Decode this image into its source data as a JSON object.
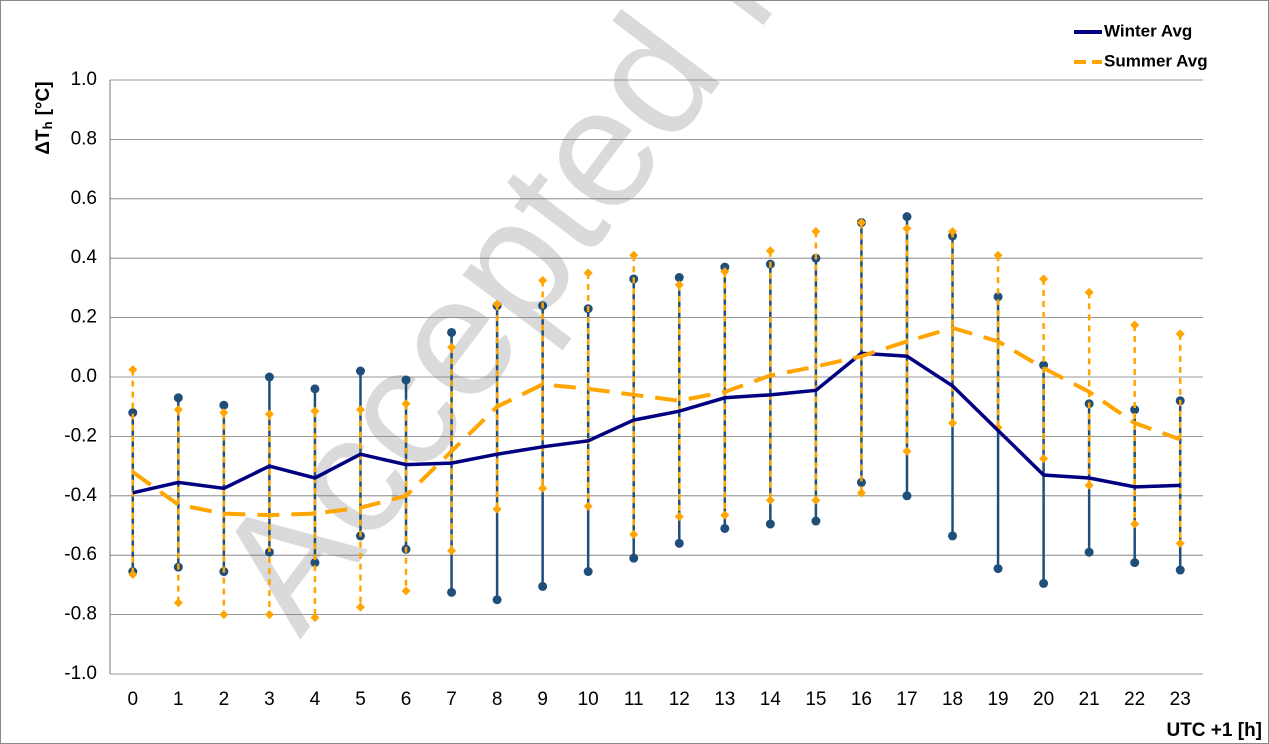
{
  "chart_data": {
    "type": "line",
    "watermark": "Accepted Ma",
    "y_label": [
      "ΔT",
      "h",
      "[°C]"
    ],
    "x_label": "UTC +1 [h]",
    "categories": [
      "0",
      "1",
      "2",
      "3",
      "4",
      "5",
      "6",
      "7",
      "8",
      "9",
      "10",
      "11",
      "12",
      "13",
      "14",
      "15",
      "16",
      "17",
      "18",
      "19",
      "20",
      "21",
      "22",
      "23"
    ],
    "ylim": [
      -1.0,
      1.0
    ],
    "yticks": [
      {
        "value": 1.0,
        "label": "1.0"
      },
      0.8,
      0.6,
      0.4,
      0.2,
      {
        "value": 0.0,
        "label": "0.0"
      },
      -0.2,
      -0.4,
      -0.6,
      -0.8,
      {
        "value": -1.0,
        "label": "-1.0"
      }
    ],
    "grid": true,
    "legend": "top-right",
    "series": [
      {
        "name": "Winter Avg",
        "color": "#000080",
        "bar_color": "#1f4e79",
        "dashed": false,
        "values": [
          -0.39,
          -0.355,
          -0.375,
          -0.3,
          -0.34,
          -0.26,
          -0.295,
          -0.29,
          -0.26,
          -0.235,
          -0.215,
          -0.145,
          -0.115,
          -0.07,
          -0.06,
          -0.045,
          0.08,
          0.07,
          -0.03,
          -0.18,
          -0.33,
          -0.34,
          -0.37,
          -0.365
        ],
        "max": [
          -0.12,
          -0.07,
          -0.095,
          0.0,
          -0.04,
          0.02,
          -0.01,
          0.15,
          0.24,
          0.24,
          0.23,
          0.33,
          0.335,
          0.37,
          0.38,
          0.4,
          0.52,
          0.54,
          0.475,
          0.27,
          0.04,
          -0.09,
          -0.11,
          -0.08
        ],
        "min": [
          -0.655,
          -0.64,
          -0.655,
          -0.59,
          -0.625,
          -0.535,
          -0.58,
          -0.725,
          -0.75,
          -0.705,
          -0.655,
          -0.61,
          -0.56,
          -0.51,
          -0.495,
          -0.485,
          -0.355,
          -0.4,
          -0.535,
          -0.645,
          -0.695,
          -0.59,
          -0.625,
          -0.65
        ]
      },
      {
        "name": "Summer Avg",
        "color": "#ffa500",
        "bar_color": "#ffa500",
        "dashed": true,
        "values": [
          -0.32,
          -0.43,
          -0.46,
          -0.465,
          -0.46,
          -0.44,
          -0.4,
          -0.25,
          -0.1,
          -0.025,
          -0.04,
          -0.06,
          -0.08,
          -0.05,
          0.005,
          0.035,
          0.07,
          0.12,
          0.165,
          0.12,
          0.03,
          -0.05,
          -0.155,
          -0.21
        ],
        "max": [
          0.025,
          -0.11,
          -0.12,
          -0.125,
          -0.115,
          -0.11,
          -0.09,
          0.1,
          0.245,
          0.325,
          0.35,
          0.41,
          0.31,
          0.355,
          0.425,
          0.49,
          0.52,
          0.5,
          0.49,
          0.41,
          0.33,
          0.285,
          0.175,
          0.145
        ],
        "min": [
          -0.665,
          -0.76,
          -0.8,
          -0.8,
          -0.81,
          -0.775,
          -0.72,
          -0.585,
          -0.445,
          -0.375,
          -0.435,
          -0.53,
          -0.47,
          -0.465,
          -0.415,
          -0.415,
          -0.39,
          -0.25,
          -0.155,
          -0.17,
          -0.275,
          -0.365,
          -0.495,
          -0.56
        ]
      }
    ]
  }
}
